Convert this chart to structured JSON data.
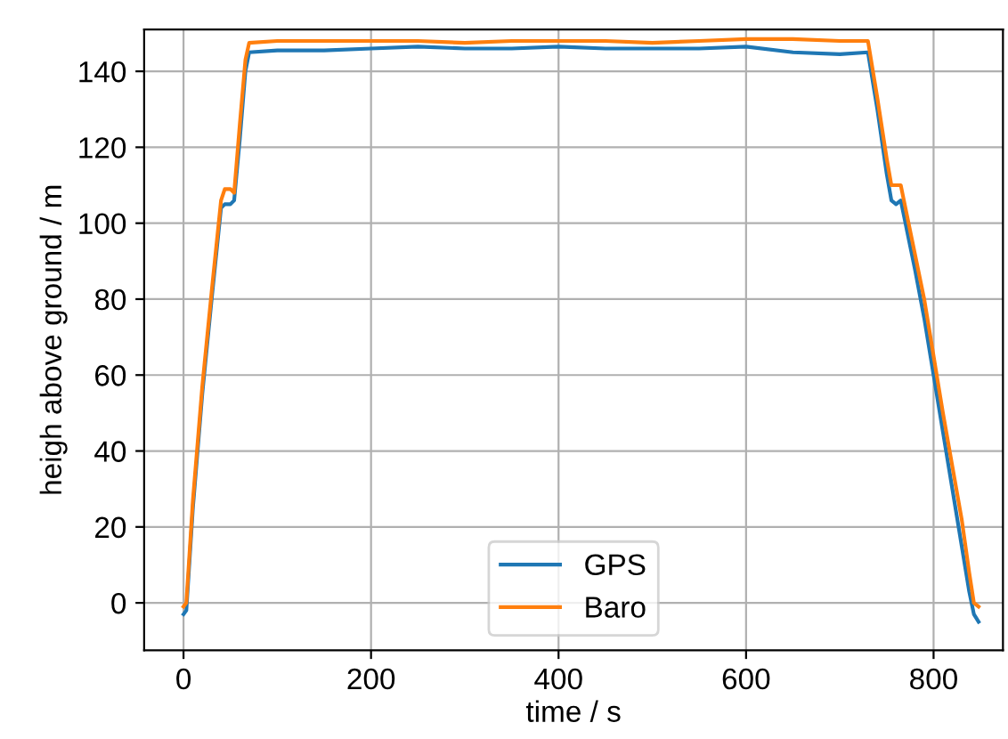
{
  "chart_data": {
    "type": "line",
    "xlabel": "time / s",
    "ylabel": "heigh above ground / m",
    "xlim": [
      -42,
      874
    ],
    "ylim": [
      -12.5,
      151
    ],
    "xticks": [
      0,
      200,
      400,
      600,
      800
    ],
    "yticks": [
      0,
      20,
      40,
      60,
      80,
      100,
      120,
      140
    ],
    "grid": true,
    "legend": "bottom",
    "series": [
      {
        "name": "GPS",
        "color": "#1f77b4",
        "x": [
          0,
          3,
          10,
          20,
          30,
          40,
          44,
          50,
          54,
          60,
          66,
          70,
          100,
          150,
          200,
          250,
          300,
          350,
          400,
          450,
          500,
          550,
          600,
          650,
          700,
          730,
          740,
          750,
          755,
          760,
          765,
          770,
          780,
          790,
          800,
          810,
          820,
          830,
          838,
          843,
          848
        ],
        "values": [
          -3,
          -2,
          25,
          55,
          80,
          104,
          105,
          105,
          106,
          122,
          140,
          145,
          145.5,
          145.5,
          146,
          146.5,
          146,
          146,
          146.5,
          146,
          146,
          146,
          146.5,
          145,
          144.5,
          145,
          130,
          113,
          106,
          105,
          106,
          100,
          88,
          75,
          60,
          45,
          30,
          15,
          3,
          -3,
          -5
        ]
      },
      {
        "name": "Baro",
        "color": "#ff7f0e",
        "x": [
          0,
          3,
          10,
          20,
          30,
          40,
          44,
          50,
          54,
          60,
          66,
          70,
          100,
          150,
          200,
          250,
          300,
          350,
          400,
          450,
          500,
          550,
          600,
          650,
          700,
          730,
          740,
          750,
          755,
          760,
          765,
          770,
          780,
          790,
          800,
          810,
          820,
          830,
          838,
          843,
          848
        ],
        "values": [
          -1,
          0,
          27,
          57,
          82,
          106,
          109,
          109,
          108,
          126,
          143,
          147.5,
          148,
          148,
          148,
          148,
          147.5,
          148,
          148,
          148,
          147.5,
          148,
          148.5,
          148.5,
          148,
          148,
          133,
          117,
          110,
          110,
          110,
          104,
          92,
          80,
          65,
          50,
          36,
          22,
          8,
          0,
          -1
        ]
      }
    ]
  }
}
